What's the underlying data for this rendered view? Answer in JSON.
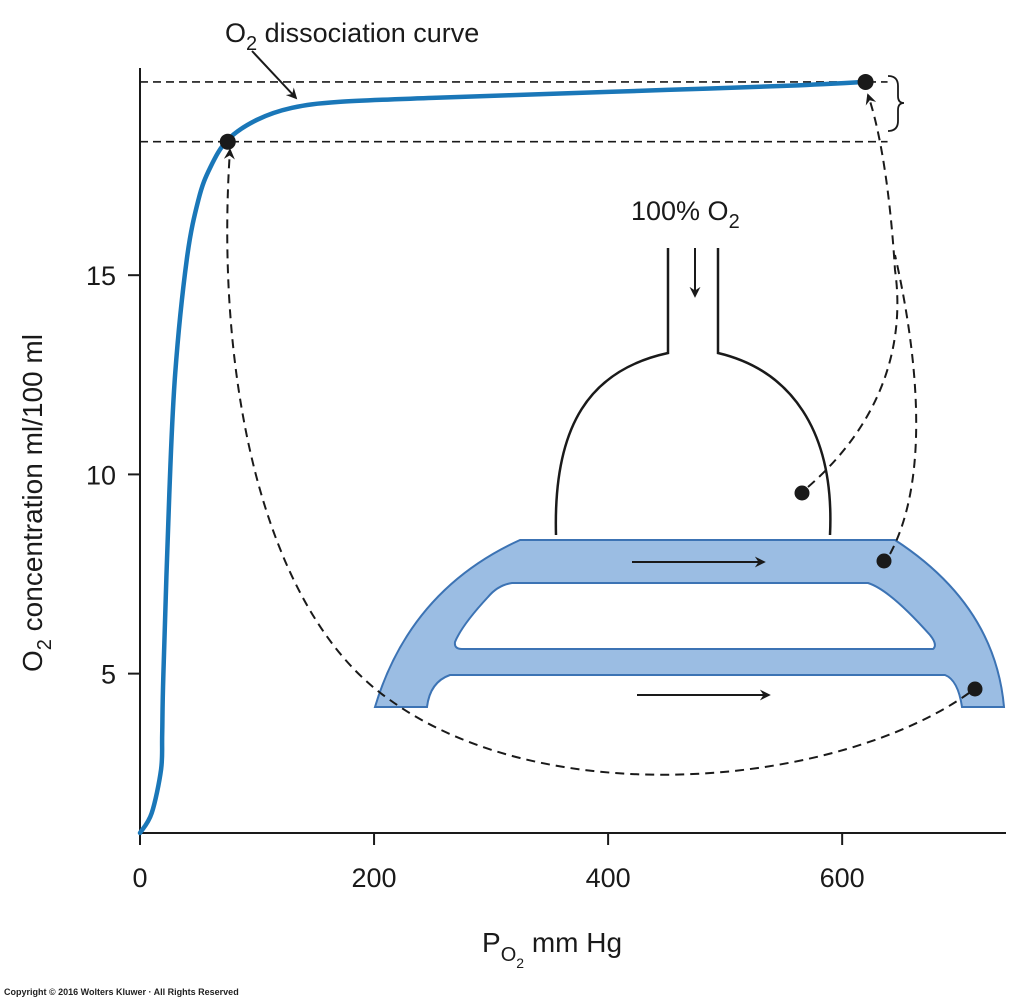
{
  "chart_data": {
    "type": "line",
    "title": "",
    "xlabel": {
      "main": "P",
      "sub": "O",
      "subsub": "2",
      "rest": " mm Hg"
    },
    "ylabel": {
      "pre": "O",
      "sub": "2",
      "rest": " concentration ml/100 ml"
    },
    "xlim": [
      0,
      740
    ],
    "ylim": [
      1,
      20.2
    ],
    "x_ticks": [
      {
        "value": 0,
        "label": "0"
      },
      {
        "value": 200,
        "label": "200"
      },
      {
        "value": 400,
        "label": "400"
      },
      {
        "value": 600,
        "label": "600"
      }
    ],
    "y_ticks": [
      {
        "value": 5,
        "label": "5"
      },
      {
        "value": 10,
        "label": "10"
      },
      {
        "value": 15,
        "label": "15"
      }
    ],
    "grid": false,
    "series": [
      {
        "name": "O2 dissociation curve",
        "color": "#1a77b8",
        "x": [
          0,
          10,
          18,
          19,
          20,
          25,
          30,
          40,
          50,
          60,
          75,
          100,
          130,
          170,
          250,
          350,
          450,
          550,
          620
        ],
        "y": [
          1.0,
          1.5,
          2.6,
          3.5,
          5.0,
          9.5,
          12.5,
          15.4,
          16.9,
          17.7,
          18.4,
          18.9,
          19.2,
          19.35,
          19.45,
          19.55,
          19.65,
          19.75,
          19.85
        ]
      }
    ],
    "points": [
      {
        "name": "arterial-point",
        "x": 75,
        "y": 18.35
      },
      {
        "name": "pure-o2-point",
        "x": 620,
        "y": 19.85
      }
    ],
    "reference_lines": [
      {
        "axis": "y",
        "value": 19.85
      },
      {
        "axis": "y",
        "value": 18.35
      }
    ],
    "annotations": {
      "curve_label": {
        "main": "O",
        "sub": "2",
        "rest": " dissociation curve"
      },
      "gas_label": {
        "main": "100% O",
        "sub": "2"
      }
    }
  },
  "colors": {
    "curve": "#1a77b8",
    "lung": "#9bbde3",
    "lung_stroke": "#3c73b4",
    "ink": "#1a1a1a"
  },
  "copyright": "Copyright © 2016 Wolters Kluwer · All Rights Reserved"
}
